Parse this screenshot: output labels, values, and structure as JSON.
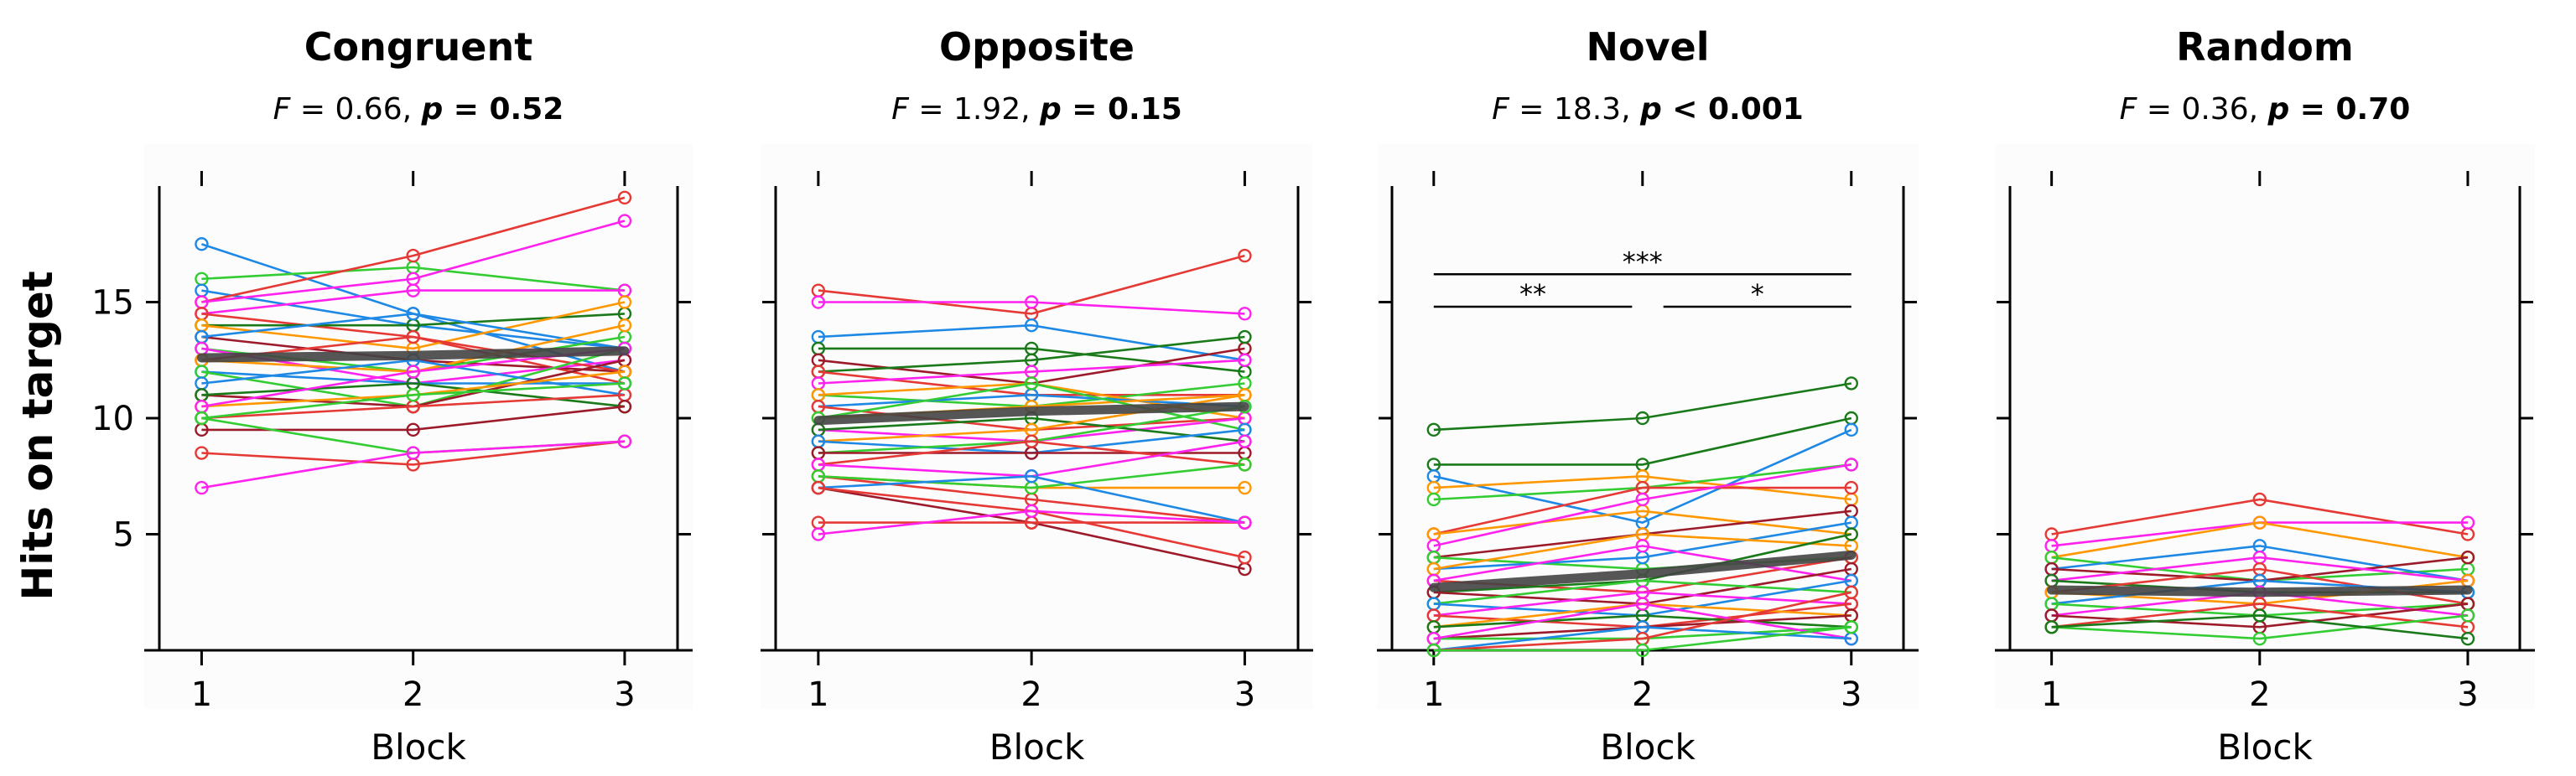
{
  "y_axis_label": "Hits on target",
  "x_axis_label": "Block",
  "chart_data": [
    {
      "type": "line",
      "title": "Congruent",
      "stat": {
        "F_sym": "F",
        "F_text": " = 0.66, ",
        "p_sym": "p",
        "p_text": " = 0.52"
      },
      "xlabel": "Block",
      "ylabel": "Hits on target",
      "x": [
        1,
        2,
        3
      ],
      "xlim": [
        0.8,
        3.25
      ],
      "ylim": [
        0,
        20
      ],
      "yticks": [
        5,
        10,
        15
      ],
      "mean": {
        "values": [
          12.6,
          12.7,
          12.9
        ],
        "color": "#444444"
      },
      "series": [
        {
          "values": [
            17.5,
            14.5,
            12.0
          ],
          "color": "#1e88e5"
        },
        {
          "values": [
            16.0,
            16.5,
            15.5
          ],
          "color": "#33cc33"
        },
        {
          "values": [
            15.5,
            14.0,
            13.0
          ],
          "color": "#1e88e5"
        },
        {
          "values": [
            15.0,
            17.0,
            19.5
          ],
          "color": "#e53935"
        },
        {
          "values": [
            15.0,
            16.0,
            18.5
          ],
          "color": "#ff22ee"
        },
        {
          "values": [
            14.5,
            15.5,
            15.5
          ],
          "color": "#ff22ee"
        },
        {
          "values": [
            14.5,
            13.5,
            11.5
          ],
          "color": "#e53935"
        },
        {
          "values": [
            14.0,
            14.0,
            14.5
          ],
          "color": "#1a7a1a"
        },
        {
          "values": [
            14.0,
            13.0,
            15.0
          ],
          "color": "#ff9800"
        },
        {
          "values": [
            13.5,
            12.5,
            12.0
          ],
          "color": "#9c1a2a"
        },
        {
          "values": [
            13.5,
            14.5,
            13.0
          ],
          "color": "#1e88e5"
        },
        {
          "values": [
            13.0,
            12.0,
            13.5
          ],
          "color": "#33cc33"
        },
        {
          "values": [
            13.0,
            11.5,
            12.5
          ],
          "color": "#ff22ee"
        },
        {
          "values": [
            12.5,
            13.5,
            12.0
          ],
          "color": "#e53935"
        },
        {
          "values": [
            12.5,
            12.0,
            14.0
          ],
          "color": "#ff9800"
        },
        {
          "values": [
            12.0,
            11.5,
            11.5
          ],
          "color": "#1e88e5"
        },
        {
          "values": [
            12.0,
            10.5,
            13.0
          ],
          "color": "#33cc33"
        },
        {
          "values": [
            11.5,
            12.5,
            11.0
          ],
          "color": "#1e88e5"
        },
        {
          "values": [
            11.0,
            10.5,
            12.5
          ],
          "color": "#9c1a2a"
        },
        {
          "values": [
            11.0,
            11.5,
            10.5
          ],
          "color": "#1a7a1a"
        },
        {
          "values": [
            10.5,
            11.0,
            12.0
          ],
          "color": "#ff9800"
        },
        {
          "values": [
            10.5,
            12.0,
            13.0
          ],
          "color": "#ff22ee"
        },
        {
          "values": [
            10.0,
            10.5,
            11.0
          ],
          "color": "#e53935"
        },
        {
          "values": [
            10.0,
            11.0,
            11.5
          ],
          "color": "#33cc33"
        },
        {
          "values": [
            9.5,
            9.5,
            10.5
          ],
          "color": "#9c1a2a"
        },
        {
          "values": [
            8.5,
            8.0,
            9.0
          ],
          "color": "#e53935"
        },
        {
          "values": [
            10.0,
            8.5,
            9.0
          ],
          "color": "#33cc33"
        },
        {
          "values": [
            7.0,
            8.5,
            9.0
          ],
          "color": "#ff22ee"
        }
      ]
    },
    {
      "type": "line",
      "title": "Opposite",
      "stat": {
        "F_sym": "F",
        "F_text": " = 1.92, ",
        "p_sym": "p",
        "p_text": " = 0.15"
      },
      "xlabel": "Block",
      "ylabel": "",
      "x": [
        1,
        2,
        3
      ],
      "xlim": [
        0.8,
        3.25
      ],
      "ylim": [
        0,
        20
      ],
      "yticks": [
        5,
        10,
        15
      ],
      "mean": {
        "values": [
          9.9,
          10.3,
          10.5
        ],
        "color": "#444444"
      },
      "series": [
        {
          "values": [
            15.5,
            14.5,
            17.0
          ],
          "color": "#e53935"
        },
        {
          "values": [
            15.0,
            15.0,
            14.5
          ],
          "color": "#ff22ee"
        },
        {
          "values": [
            13.5,
            14.0,
            12.5
          ],
          "color": "#1e88e5"
        },
        {
          "values": [
            13.0,
            13.0,
            12.0
          ],
          "color": "#1a7a1a"
        },
        {
          "values": [
            12.5,
            11.5,
            13.0
          ],
          "color": "#9c1a2a"
        },
        {
          "values": [
            12.0,
            12.5,
            13.5
          ],
          "color": "#1a7a1a"
        },
        {
          "values": [
            12.0,
            11.0,
            11.0
          ],
          "color": "#e53935"
        },
        {
          "values": [
            11.5,
            12.0,
            12.5
          ],
          "color": "#ff22ee"
        },
        {
          "values": [
            11.0,
            10.5,
            11.5
          ],
          "color": "#33cc33"
        },
        {
          "values": [
            11.0,
            11.5,
            10.0
          ],
          "color": "#ff9800"
        },
        {
          "values": [
            10.5,
            11.0,
            10.5
          ],
          "color": "#1e88e5"
        },
        {
          "values": [
            10.5,
            9.5,
            10.0
          ],
          "color": "#e53935"
        },
        {
          "values": [
            10.0,
            10.5,
            11.0
          ],
          "color": "#ff9800"
        },
        {
          "values": [
            10.0,
            11.5,
            9.5
          ],
          "color": "#33cc33"
        },
        {
          "values": [
            9.5,
            9.0,
            10.0
          ],
          "color": "#ff22ee"
        },
        {
          "values": [
            9.5,
            10.0,
            9.0
          ],
          "color": "#1a7a1a"
        },
        {
          "values": [
            9.0,
            9.5,
            11.0
          ],
          "color": "#ff9800"
        },
        {
          "values": [
            9.0,
            8.5,
            9.5
          ],
          "color": "#1e88e5"
        },
        {
          "values": [
            8.5,
            9.0,
            10.5
          ],
          "color": "#33cc33"
        },
        {
          "values": [
            8.5,
            8.5,
            8.5
          ],
          "color": "#9c1a2a"
        },
        {
          "values": [
            8.0,
            9.0,
            8.0
          ],
          "color": "#e53935"
        },
        {
          "values": [
            8.0,
            7.5,
            9.0
          ],
          "color": "#ff22ee"
        },
        {
          "values": [
            7.5,
            7.0,
            7.0
          ],
          "color": "#ff9800"
        },
        {
          "values": [
            7.5,
            6.5,
            5.5
          ],
          "color": "#e53935"
        },
        {
          "values": [
            7.5,
            7.0,
            8.0
          ],
          "color": "#33cc33"
        },
        {
          "values": [
            7.0,
            7.5,
            5.5
          ],
          "color": "#1e88e5"
        },
        {
          "values": [
            7.0,
            5.5,
            3.5
          ],
          "color": "#9c1a2a"
        },
        {
          "values": [
            7.0,
            6.0,
            4.0
          ],
          "color": "#e53935"
        },
        {
          "values": [
            5.5,
            5.5,
            5.5
          ],
          "color": "#e53935"
        },
        {
          "values": [
            5.0,
            6.0,
            5.5
          ],
          "color": "#ff22ee"
        }
      ]
    },
    {
      "type": "line",
      "title": "Novel",
      "stat": {
        "F_sym": "F",
        "F_text": " = 18.3, ",
        "p_sym": "p",
        "p_text": "  < 0.001"
      },
      "xlabel": "Block",
      "ylabel": "",
      "x": [
        1,
        2,
        3
      ],
      "xlim": [
        0.8,
        3.25
      ],
      "ylim": [
        0,
        20
      ],
      "yticks": [
        5,
        10,
        15
      ],
      "mean": {
        "values": [
          2.7,
          3.3,
          4.1
        ],
        "color": "#444444"
      },
      "annotations": [
        {
          "label": "***",
          "x1": 1,
          "x2": 3,
          "y": 16.2
        },
        {
          "label": "**",
          "x1": 1,
          "x2": 1.95,
          "y": 14.8
        },
        {
          "label": "*",
          "x1": 2.1,
          "x2": 3,
          "y": 14.8
        }
      ],
      "series": [
        {
          "values": [
            9.5,
            10.0,
            11.5
          ],
          "color": "#1a7a1a"
        },
        {
          "values": [
            8.0,
            8.0,
            10.0
          ],
          "color": "#1a7a1a"
        },
        {
          "values": [
            7.5,
            5.5,
            9.5
          ],
          "color": "#1e88e5"
        },
        {
          "values": [
            7.0,
            7.5,
            6.5
          ],
          "color": "#ff9800"
        },
        {
          "values": [
            6.5,
            7.0,
            8.0
          ],
          "color": "#33cc33"
        },
        {
          "values": [
            5.0,
            7.0,
            7.0
          ],
          "color": "#e53935"
        },
        {
          "values": [
            5.0,
            6.0,
            5.0
          ],
          "color": "#ff9800"
        },
        {
          "values": [
            4.5,
            6.5,
            8.0
          ],
          "color": "#ff22ee"
        },
        {
          "values": [
            4.0,
            5.0,
            6.0
          ],
          "color": "#9c1a2a"
        },
        {
          "values": [
            4.0,
            3.5,
            4.0
          ],
          "color": "#33cc33"
        },
        {
          "values": [
            3.5,
            4.0,
            5.5
          ],
          "color": "#1e88e5"
        },
        {
          "values": [
            3.5,
            5.0,
            4.5
          ],
          "color": "#ff9800"
        },
        {
          "values": [
            3.0,
            2.5,
            4.0
          ],
          "color": "#e53935"
        },
        {
          "values": [
            3.0,
            4.5,
            3.0
          ],
          "color": "#ff22ee"
        },
        {
          "values": [
            2.5,
            3.0,
            5.0
          ],
          "color": "#1a7a1a"
        },
        {
          "values": [
            2.5,
            2.0,
            3.5
          ],
          "color": "#9c1a2a"
        },
        {
          "values": [
            2.0,
            3.0,
            2.5
          ],
          "color": "#33cc33"
        },
        {
          "values": [
            2.0,
            1.5,
            3.0
          ],
          "color": "#1e88e5"
        },
        {
          "values": [
            1.5,
            2.5,
            2.0
          ],
          "color": "#ff22ee"
        },
        {
          "values": [
            1.5,
            1.0,
            2.0
          ],
          "color": "#e53935"
        },
        {
          "values": [
            1.0,
            2.0,
            1.5
          ],
          "color": "#ff9800"
        },
        {
          "values": [
            1.0,
            1.5,
            1.0
          ],
          "color": "#1a7a1a"
        },
        {
          "values": [
            0.5,
            1.0,
            1.5
          ],
          "color": "#9c1a2a"
        },
        {
          "values": [
            0.5,
            0.5,
            1.0
          ],
          "color": "#33cc33"
        },
        {
          "values": [
            0.5,
            2.0,
            0.5
          ],
          "color": "#ff22ee"
        },
        {
          "values": [
            0.0,
            1.0,
            0.5
          ],
          "color": "#1e88e5"
        },
        {
          "values": [
            0.0,
            0.5,
            2.5
          ],
          "color": "#e53935"
        },
        {
          "values": [
            0.0,
            0.0,
            1.0
          ],
          "color": "#33cc33"
        }
      ]
    },
    {
      "type": "line",
      "title": "Random",
      "stat": {
        "F_sym": "F",
        "F_text": " = 0.36, ",
        "p_sym": "p",
        "p_text": " = 0.70"
      },
      "xlabel": "Block",
      "ylabel": "",
      "x": [
        1,
        2,
        3
      ],
      "xlim": [
        0.8,
        3.25
      ],
      "ylim": [
        0,
        20
      ],
      "yticks": [
        5,
        10,
        15
      ],
      "mean": {
        "values": [
          2.6,
          2.5,
          2.6
        ],
        "color": "#444444"
      },
      "series": [
        {
          "values": [
            5.0,
            6.5,
            5.0
          ],
          "color": "#e53935"
        },
        {
          "values": [
            4.5,
            5.5,
            5.5
          ],
          "color": "#ff22ee"
        },
        {
          "values": [
            4.0,
            5.5,
            4.0
          ],
          "color": "#ff9800"
        },
        {
          "values": [
            4.0,
            3.0,
            3.5
          ],
          "color": "#33cc33"
        },
        {
          "values": [
            3.5,
            4.5,
            3.0
          ],
          "color": "#1e88e5"
        },
        {
          "values": [
            3.5,
            3.0,
            4.0
          ],
          "color": "#9c1a2a"
        },
        {
          "values": [
            3.0,
            4.0,
            3.0
          ],
          "color": "#ff22ee"
        },
        {
          "values": [
            3.0,
            2.5,
            2.5
          ],
          "color": "#1a7a1a"
        },
        {
          "values": [
            2.5,
            3.5,
            2.0
          ],
          "color": "#e53935"
        },
        {
          "values": [
            2.5,
            2.0,
            3.0
          ],
          "color": "#ff9800"
        },
        {
          "values": [
            2.0,
            3.0,
            2.5
          ],
          "color": "#1e88e5"
        },
        {
          "values": [
            2.0,
            1.5,
            2.0
          ],
          "color": "#33cc33"
        },
        {
          "values": [
            1.5,
            2.5,
            1.5
          ],
          "color": "#ff22ee"
        },
        {
          "values": [
            1.5,
            1.0,
            2.0
          ],
          "color": "#9c1a2a"
        },
        {
          "values": [
            1.0,
            2.0,
            1.0
          ],
          "color": "#e53935"
        },
        {
          "values": [
            1.0,
            0.5,
            1.5
          ],
          "color": "#33cc33"
        },
        {
          "values": [
            1.0,
            1.5,
            0.5
          ],
          "color": "#1a7a1a"
        }
      ]
    }
  ]
}
